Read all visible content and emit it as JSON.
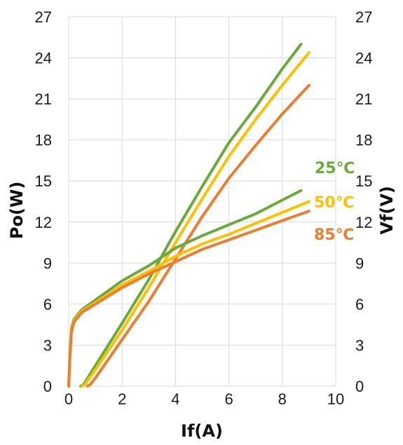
{
  "chart_data": {
    "type": "line",
    "xlabel": "If(A)",
    "ylabel_left": "Po(W)",
    "ylabel_right": "Vf(V)",
    "xlim": [
      0,
      10
    ],
    "ylim_left": [
      0,
      27
    ],
    "ylim_right": [
      0,
      27
    ],
    "x_ticks": [
      "0",
      "2",
      "4",
      "6",
      "8",
      "10"
    ],
    "y_ticks_left": [
      "0",
      "3",
      "6",
      "9",
      "12",
      "15",
      "18",
      "21",
      "24",
      "27"
    ],
    "y_ticks_right": [
      "0",
      "3",
      "6",
      "9",
      "12",
      "15",
      "18",
      "21",
      "24",
      "27"
    ],
    "grid": true,
    "legend": [
      {
        "label": "25℃",
        "color": "#6aaa3a"
      },
      {
        "label": "50℃",
        "color": "#ffc000"
      },
      {
        "label": "85℃",
        "color": "#ed7d31"
      }
    ],
    "series": [
      {
        "name": "25℃",
        "quantity": "Po",
        "color": "#6aaa3a",
        "points": [
          [
            0.45,
            0
          ],
          [
            0.55,
            0.1
          ],
          [
            1,
            1.5
          ],
          [
            2,
            4.6
          ],
          [
            3,
            7.8
          ],
          [
            4,
            11.3
          ],
          [
            5,
            14.6
          ],
          [
            6,
            17.8
          ],
          [
            7,
            20.4
          ],
          [
            8,
            23.2
          ],
          [
            8.7,
            25.0
          ]
        ]
      },
      {
        "name": "50℃",
        "quantity": "Po",
        "color": "#ffc000",
        "points": [
          [
            0.5,
            0
          ],
          [
            0.6,
            0.1
          ],
          [
            1,
            1.2
          ],
          [
            2,
            4.1
          ],
          [
            3,
            7.2
          ],
          [
            4,
            10.5
          ],
          [
            5,
            13.7
          ],
          [
            6,
            16.8
          ],
          [
            7,
            19.5
          ],
          [
            8,
            22.0
          ],
          [
            9,
            24.4
          ]
        ]
      },
      {
        "name": "85℃",
        "quantity": "Po",
        "color": "#ed7d31",
        "points": [
          [
            0.7,
            0
          ],
          [
            0.8,
            0.1
          ],
          [
            1,
            0.6
          ],
          [
            2,
            3.4
          ],
          [
            3,
            6.2
          ],
          [
            4,
            9.3
          ],
          [
            5,
            12.4
          ],
          [
            6,
            15.2
          ],
          [
            7,
            17.6
          ],
          [
            8,
            19.9
          ],
          [
            9,
            22.0
          ]
        ]
      },
      {
        "name": "25℃",
        "quantity": "Vf",
        "color": "#6aaa3a",
        "points": [
          [
            0,
            0
          ],
          [
            0.05,
            2.5
          ],
          [
            0.1,
            4.2
          ],
          [
            0.2,
            4.9
          ],
          [
            0.5,
            5.6
          ],
          [
            1,
            6.3
          ],
          [
            2,
            7.7
          ],
          [
            3,
            8.8
          ],
          [
            4,
            10.1
          ],
          [
            5,
            11.0
          ],
          [
            6,
            11.8
          ],
          [
            7,
            12.6
          ],
          [
            8,
            13.6
          ],
          [
            8.7,
            14.3
          ]
        ]
      },
      {
        "name": "50℃",
        "quantity": "Vf",
        "color": "#ffc000",
        "points": [
          [
            0,
            0
          ],
          [
            0.05,
            2.4
          ],
          [
            0.1,
            4.0
          ],
          [
            0.2,
            4.8
          ],
          [
            0.5,
            5.5
          ],
          [
            1,
            6.1
          ],
          [
            2,
            7.4
          ],
          [
            3,
            8.4
          ],
          [
            4,
            9.5
          ],
          [
            5,
            10.4
          ],
          [
            6,
            11.1
          ],
          [
            7,
            11.9
          ],
          [
            8,
            12.7
          ],
          [
            9,
            13.5
          ]
        ]
      },
      {
        "name": "85℃",
        "quantity": "Vf",
        "color": "#ed7d31",
        "points": [
          [
            0,
            0
          ],
          [
            0.05,
            2.3
          ],
          [
            0.1,
            3.9
          ],
          [
            0.2,
            4.7
          ],
          [
            0.5,
            5.4
          ],
          [
            1,
            6.0
          ],
          [
            2,
            7.2
          ],
          [
            3,
            8.2
          ],
          [
            4,
            9.1
          ],
          [
            5,
            10.0
          ],
          [
            6,
            10.7
          ],
          [
            7,
            11.4
          ],
          [
            8,
            12.1
          ],
          [
            9,
            12.8
          ]
        ]
      }
    ]
  }
}
